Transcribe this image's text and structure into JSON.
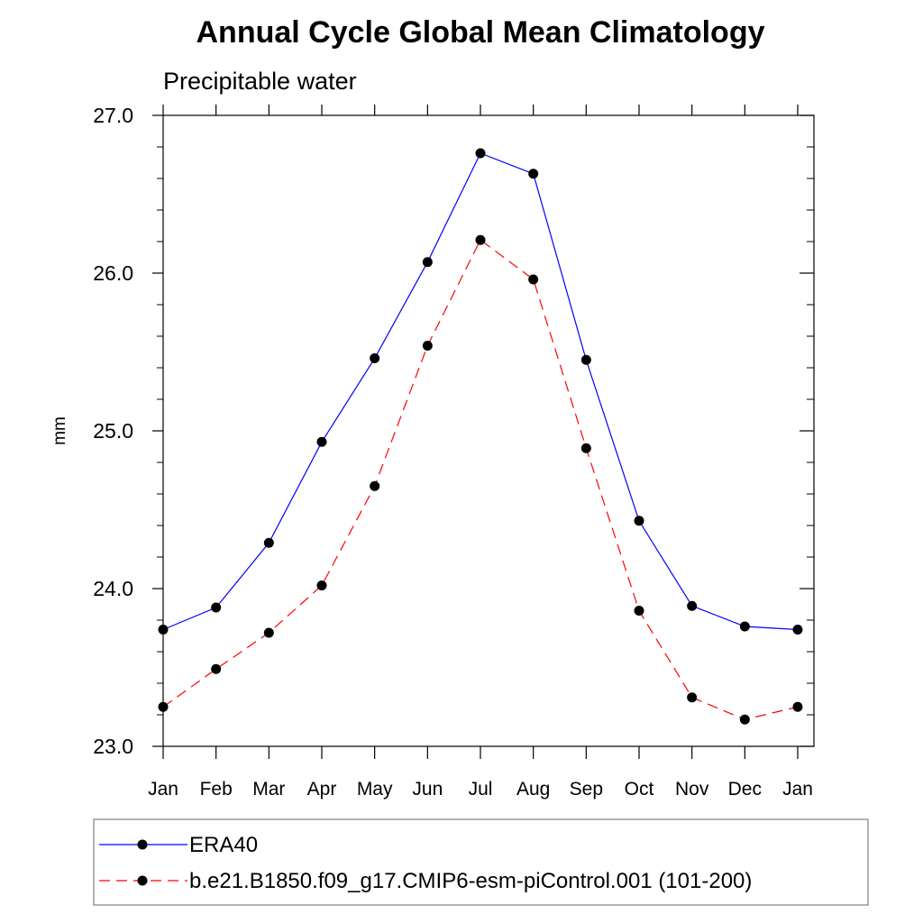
{
  "chart_data": {
    "type": "line",
    "title": "Annual Cycle Global Mean Climatology",
    "subtitle": "Precipitable water",
    "xlabel": "",
    "ylabel": "mm",
    "categories": [
      "Jan",
      "Feb",
      "Mar",
      "Apr",
      "May",
      "Jun",
      "Jul",
      "Aug",
      "Sep",
      "Oct",
      "Nov",
      "Dec",
      "Jan"
    ],
    "yticks": [
      "23.0",
      "24.0",
      "25.0",
      "26.0",
      "27.0"
    ],
    "ylim": [
      23.0,
      27.0
    ],
    "grid": false,
    "legend_position": "bottom",
    "series": [
      {
        "name": "ERA40",
        "color": "#0000ff",
        "line_style": "solid",
        "marker": "filled-circle",
        "values": [
          23.74,
          23.88,
          24.29,
          24.93,
          25.46,
          26.07,
          26.76,
          26.63,
          25.45,
          24.43,
          23.89,
          23.76,
          23.74
        ]
      },
      {
        "name": "b.e21.B1850.f09_g17.CMIP6-esm-piControl.001 (101-200)",
        "color": "#ff0000",
        "line_style": "dashed",
        "marker": "filled-circle",
        "values": [
          23.25,
          23.49,
          23.72,
          24.02,
          24.65,
          25.54,
          26.21,
          25.96,
          24.89,
          23.86,
          23.31,
          23.17,
          23.25
        ]
      }
    ]
  }
}
